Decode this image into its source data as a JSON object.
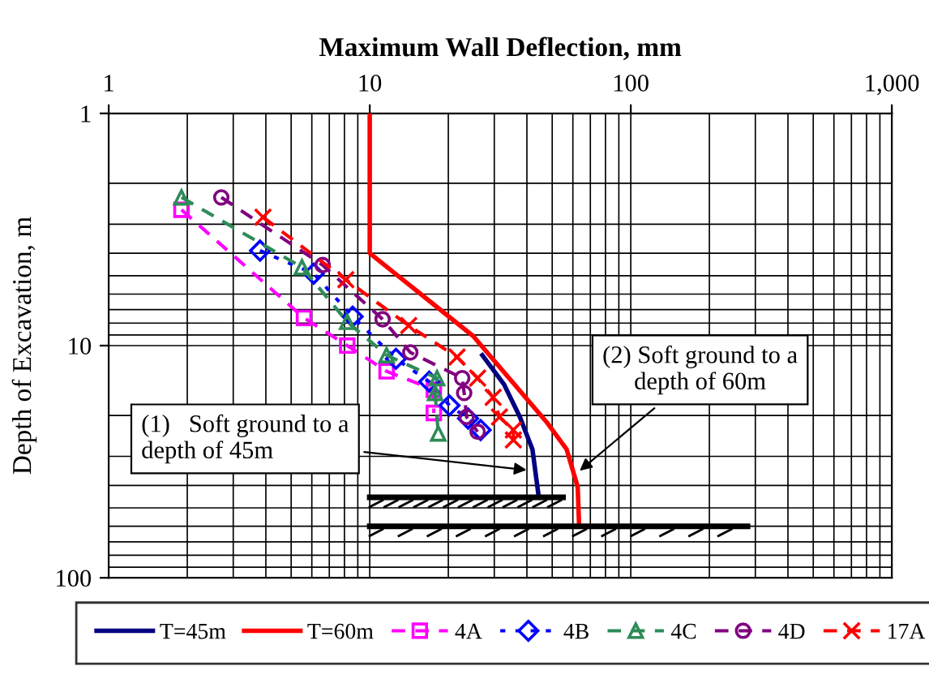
{
  "chart_data": {
    "type": "line",
    "xlabel": "Maximum Wall Deflection, mm",
    "ylabel": "Depth of Excavation, m",
    "log": "xy",
    "xlim": [
      1,
      1000
    ],
    "ylim": [
      100,
      1
    ],
    "xticks": [
      1,
      10,
      100,
      {
        "value": 1000,
        "label": "1,000"
      }
    ],
    "yticks": [
      1,
      10,
      100
    ],
    "grid": true,
    "legend": "bottom",
    "series": [
      {
        "name": "T=45m",
        "color": "#000080",
        "line_style": "solid",
        "marker": "none",
        "x": [
          27,
          32.7,
          37.6,
          42,
          44.3,
          45
        ],
        "values": [
          11,
          14.7,
          20.3,
          28,
          44,
          45
        ]
      },
      {
        "name": "T=60m",
        "color": "#ff0000",
        "line_style": "solid",
        "marker": "none",
        "x": [
          10,
          10,
          24.9,
          47.5,
          56.8,
          62.6,
          63.4
        ],
        "values": [
          1,
          4,
          9.1,
          21.3,
          28,
          40.6,
          60
        ]
      },
      {
        "name": "4A",
        "color": "#ff00ff",
        "line_style": "dashed",
        "marker": "square",
        "x": [
          1.9,
          5.6,
          8.2,
          11.6,
          17.6,
          17.6
        ],
        "values": [
          2.6,
          7.6,
          10,
          12.9,
          15.5,
          19.5
        ]
      },
      {
        "name": "4B",
        "color": "#0000ff",
        "line_style": "dotted",
        "marker": "diamond",
        "x": [
          3.8,
          6.1,
          8.6,
          12.6,
          16.9,
          20.2,
          23.8,
          26.6
        ],
        "values": [
          3.9,
          4.9,
          7.5,
          11.4,
          14.3,
          18.1,
          20.6,
          23.1
        ]
      },
      {
        "name": "4C",
        "color": "#2e8b57",
        "line_style": "dashed",
        "marker": "triangle",
        "x": [
          1.9,
          5.5,
          8.2,
          11.6,
          18.1,
          17.8,
          18.3
        ],
        "values": [
          2.3,
          4.6,
          7.9,
          11,
          13.8,
          16,
          23.9
        ]
      },
      {
        "name": "4D",
        "color": "#800080",
        "line_style": "dashed",
        "marker": "circle",
        "x": [
          2.7,
          6.6,
          11.2,
          14.3,
          22.6,
          23,
          23.5,
          25.9
        ],
        "values": [
          2.3,
          4.5,
          7.7,
          10.7,
          13.8,
          16,
          20.3,
          23.5
        ]
      },
      {
        "name": "17A",
        "color": "#ff0000",
        "line_style": "dashed",
        "marker": "cross",
        "x": [
          3.9,
          8.1,
          14.1,
          21.6,
          25.9,
          29.7,
          31.4,
          35.5,
          35.5
        ],
        "values": [
          2.8,
          5.2,
          8.2,
          11.2,
          13.8,
          16.7,
          20.3,
          23.1,
          25.5
        ]
      },
      {
        "color": "#000000",
        "line_style": "solid",
        "marker": "none",
        "x": [
          10,
          55
        ],
        "values": [
          45,
          45
        ]
      },
      {
        "color": "#000000",
        "line_style": "solid",
        "marker": "none",
        "x": [
          10,
          280
        ],
        "values": [
          60,
          60
        ]
      }
    ],
    "annotations": [
      {
        "text": "(1)   Soft ground to a\ndepth of 45m",
        "x": 41.5,
        "y": 34.5
      },
      {
        "text": "(2) Soft ground to a\ndepth of 60m",
        "x": 61.8,
        "y": 35.6
      }
    ]
  }
}
